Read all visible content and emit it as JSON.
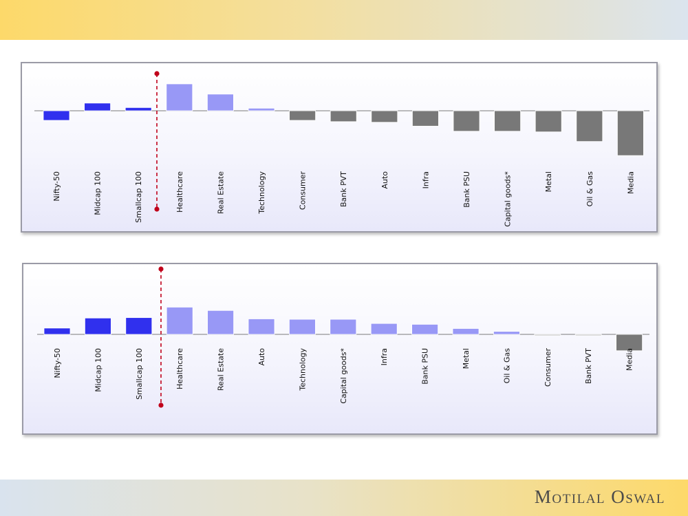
{
  "brand": {
    "name": "Motilal Oswal"
  },
  "colors": {
    "index": "#3030ee",
    "sector_positive": "#9898f6",
    "sector_negative": "#787878",
    "divider": "#c0001a"
  },
  "chart_data": [
    {
      "type": "bar",
      "categories": [
        "Nifty-50",
        "Midcap 100",
        "Smallcap 100",
        "Healthcare",
        "Real Estate",
        "Technology",
        "Consumer",
        "Bank PVT",
        "Auto",
        "Infra",
        "Bank PSU",
        "Capital goods*",
        "Metal",
        "Oil & Gas",
        "Media"
      ],
      "values": [
        -15,
        12,
        5,
        42,
        26,
        4,
        -15,
        -17,
        -18,
        -24,
        -32,
        -32,
        -33,
        -48,
        -70
      ],
      "ylim": [
        -75,
        75
      ],
      "index_count": 3
    },
    {
      "type": "bar",
      "categories": [
        "Nifty-50",
        "Midcap 100",
        "Smallcap 100",
        "Healthcare",
        "Real Estate",
        "Auto",
        "Technology",
        "Capital goods*",
        "Infra",
        "Bank PSU",
        "Metal",
        "Oil & Gas",
        "Consumer",
        "Bank PVT",
        "Media"
      ],
      "values": [
        15,
        39,
        40,
        65,
        57,
        37,
        36,
        36,
        26,
        24,
        14,
        7,
        -2,
        -2,
        -39
      ],
      "ylim": [
        -110,
        110
      ],
      "index_count": 3
    }
  ]
}
